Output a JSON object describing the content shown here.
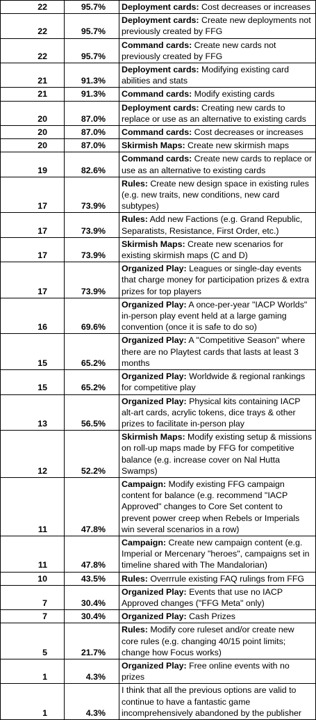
{
  "table": {
    "rows": [
      {
        "count": "22",
        "percent": "95.7%",
        "category": "Deployment cards:",
        "text": "Cost decreases or increases"
      },
      {
        "count": "22",
        "percent": "95.7%",
        "category": "Deployment cards:",
        "text": "Create new deployments not previously created by FFG"
      },
      {
        "count": "22",
        "percent": "95.7%",
        "category": "Command cards:",
        "text": "Create new cards not previously created by FFG"
      },
      {
        "count": "21",
        "percent": "91.3%",
        "category": "Deployment cards:",
        "text": "Modifying existing card abilities and stats"
      },
      {
        "count": "21",
        "percent": "91.3%",
        "category": "Command cards:",
        "text": "Modify existing cards"
      },
      {
        "count": "20",
        "percent": "87.0%",
        "category": "Deployment cards:",
        "text": "Creating new cards to replace or use as an alternative to existing cards"
      },
      {
        "count": "20",
        "percent": "87.0%",
        "category": "Command cards:",
        "text": "Cost decreases or increases"
      },
      {
        "count": "20",
        "percent": "87.0%",
        "category": "Skirmish Maps:",
        "text": "Create new skirmish maps"
      },
      {
        "count": "19",
        "percent": "82.6%",
        "category": "Command cards:",
        "text": "Create new cards to replace or use as an alternative to existing cards"
      },
      {
        "count": "17",
        "percent": "73.9%",
        "category": "Rules:",
        "text": "Create new design space in existing rules (e.g. new traits, new conditions, new card subtypes)"
      },
      {
        "count": "17",
        "percent": "73.9%",
        "category": "Rules:",
        "text": "Add new Factions (e.g. Grand Republic, Separatists, Resistance, First Order, etc.)"
      },
      {
        "count": "17",
        "percent": "73.9%",
        "category": "Skirmish Maps:",
        "text": "Create new scenarios for existing skirmish maps (C and D)"
      },
      {
        "count": "17",
        "percent": "73.9%",
        "category": "Organized Play:",
        "text": "Leagues or single-day events that charge money for participation prizes & extra prizes for top players"
      },
      {
        "count": "16",
        "percent": "69.6%",
        "category": "Organized Play:",
        "text": "A once-per-year \"IACP Worlds\" in-person play event held at a large gaming convention (once it is safe to do so)"
      },
      {
        "count": "15",
        "percent": "65.2%",
        "category": "Organized Play:",
        "text": "A \"Competitive Season\" where there are no Playtest cards that lasts at least 3 months"
      },
      {
        "count": "15",
        "percent": "65.2%",
        "category": "Organized Play:",
        "text": "Worldwide & regional rankings for competitive play"
      },
      {
        "count": "13",
        "percent": "56.5%",
        "category": "Organized Play:",
        "text": "Physical kits containing IACP alt-art cards, acrylic tokens, dice trays & other prizes to facilitate in-person play"
      },
      {
        "count": "12",
        "percent": "52.2%",
        "category": "Skirmish Maps:",
        "text": "Modify existing setup & missions on roll-up maps made by FFG for competitive balance (e.g. increase cover on Nal Hutta Swamps)"
      },
      {
        "count": "11",
        "percent": "47.8%",
        "category": "Campaign:",
        "text": "Modify existing FFG campaign content for balance (e.g. recommend \"IACP Approved\" changes to Core Set content to prevent power creep when Rebels or Imperials win several scenarios in a row)"
      },
      {
        "count": "11",
        "percent": "47.8%",
        "category": "Campaign:",
        "text": "Create new campaign content (e.g. Imperial or Mercenary \"heroes\", campaigns set in timeline shared with The Mandalorian)"
      },
      {
        "count": "10",
        "percent": "43.5%",
        "category": "Rules:",
        "text": "Overrrule existing FAQ rulings from FFG"
      },
      {
        "count": "7",
        "percent": "30.4%",
        "category": "Organized Play:",
        "text": "Events that use no IACP Approved changes (\"FFG Meta\" only)"
      },
      {
        "count": "7",
        "percent": "30.4%",
        "category": "Organized Play:",
        "text": "Cash Prizes"
      },
      {
        "count": "5",
        "percent": "21.7%",
        "category": "Rules:",
        "text": "Modify core ruleset and/or create new core rules (e.g. changing 40/15 point limits; change how Focus works)"
      },
      {
        "count": "1",
        "percent": "4.3%",
        "category": "Organized Play:",
        "text": "Free online events with no prizes"
      },
      {
        "count": "1",
        "percent": "4.3%",
        "text": "I think that all the previous options are valid to continue to have a fantastic game incomprehensively abandoned by the publisher"
      }
    ]
  }
}
